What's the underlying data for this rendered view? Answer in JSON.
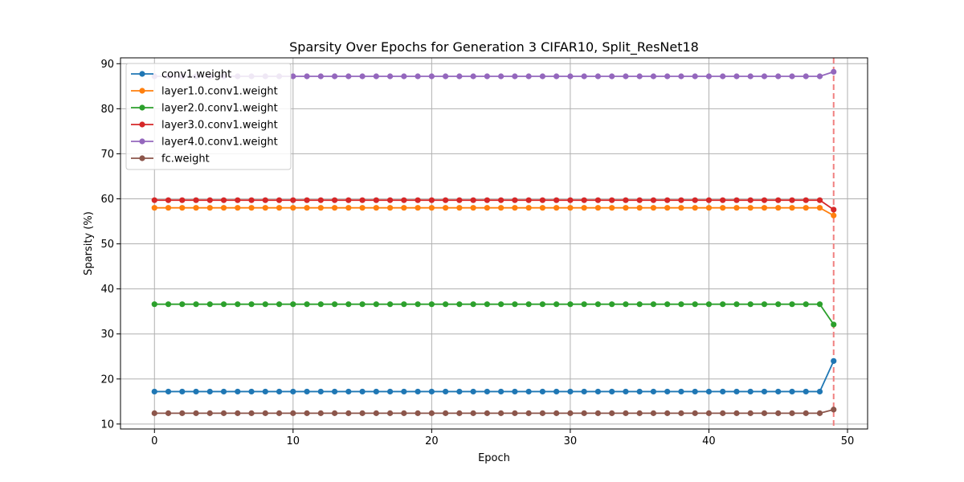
{
  "chart_data": {
    "type": "line",
    "title": "Sparsity Over Epochs for Generation 3 CIFAR10, Split_ResNet18",
    "xlabel": "Epoch",
    "ylabel": "Sparsity (%)",
    "xlim": [
      -2.45,
      51.45
    ],
    "ylim": [
      8.9,
      91.3
    ],
    "xticks": [
      0,
      10,
      20,
      30,
      40,
      50
    ],
    "yticks": [
      10,
      20,
      30,
      40,
      50,
      60,
      70,
      80,
      90
    ],
    "grid": true,
    "legend_position": "top-left",
    "vline": {
      "x": 49,
      "color": "#f08080",
      "style": "dashed"
    },
    "series": [
      {
        "name": "conv1.weight",
        "color": "#1f77b4",
        "flat": 17.2,
        "last": 24.0
      },
      {
        "name": "layer1.0.conv1.weight",
        "color": "#ff7f0e",
        "flat": 58.0,
        "last": 56.3
      },
      {
        "name": "layer2.0.conv1.weight",
        "color": "#2ca02c",
        "flat": 36.6,
        "last": 32.1
      },
      {
        "name": "layer3.0.conv1.weight",
        "color": "#d62728",
        "flat": 59.7,
        "last": 57.6
      },
      {
        "name": "layer4.0.conv1.weight",
        "color": "#9467bd",
        "flat": 87.2,
        "last": 88.2
      },
      {
        "name": "fc.weight",
        "color": "#8c564b",
        "flat": 12.4,
        "last": 13.2
      }
    ]
  }
}
